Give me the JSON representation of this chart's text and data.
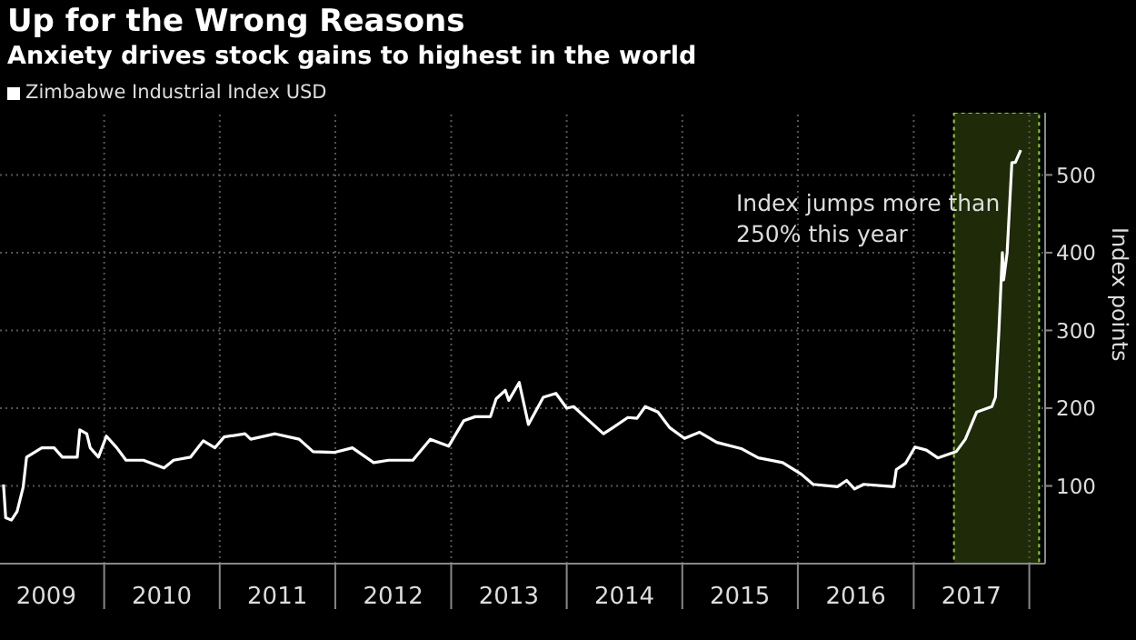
{
  "chart_data": {
    "type": "line",
    "title": "Up for the Wrong Reasons",
    "subtitle": "Anxiety drives stock gains to highest in the world",
    "ylabel": "Index points",
    "annotations": [
      "Index jumps more than 250% this year"
    ],
    "x": [
      "2009-02-17",
      "2009-02-24",
      "2009-03-14",
      "2009-04-01",
      "2009-04-20",
      "2009-05-01",
      "2009-06-18",
      "2009-07-27",
      "2009-08-22",
      "2009-10-08",
      "2009-10-16",
      "2009-11-07",
      "2009-11-18",
      "2009-12-14",
      "2010-01-08",
      "2010-02-10",
      "2010-03-11",
      "2010-05-05",
      "2010-07-09",
      "2010-08-08",
      "2010-10-01",
      "2010-11-10",
      "2010-12-17",
      "2011-01-15",
      "2011-03-22",
      "2011-04-09",
      "2011-06-25",
      "2011-09-09",
      "2011-10-23",
      "2011-12-28",
      "2012-02-24",
      "2012-05-01",
      "2012-06-18",
      "2012-09-02",
      "2012-10-27",
      "2012-12-24",
      "2013-02-10",
      "2013-03-18",
      "2013-05-05",
      "2013-05-23",
      "2013-06-21",
      "2013-07-02",
      "2013-08-04",
      "2013-09-02",
      "2013-10-19",
      "2013-11-28",
      "2014-01-01",
      "2014-01-23",
      "2014-02-21",
      "2014-04-27",
      "2014-05-27",
      "2014-07-13",
      "2014-08-11",
      "2014-09-06",
      "2014-10-16",
      "2014-11-22",
      "2015-01-08",
      "2015-02-24",
      "2015-04-20",
      "2015-07-06",
      "2015-08-29",
      "2015-11-14",
      "2016-01-12",
      "2016-02-18",
      "2016-05-05",
      "2016-06-03",
      "2016-06-28",
      "2016-07-27",
      "2016-10-30",
      "2016-11-07",
      "2016-12-06",
      "2017-01-05",
      "2017-02-10",
      "2017-03-18",
      "2017-05-15",
      "2017-06-13",
      "2017-07-19",
      "2017-09-05",
      "2017-09-16",
      "2017-09-27",
      "2017-10-08",
      "2017-10-12",
      "2017-10-23",
      "2017-11-07",
      "2017-11-18",
      "2017-12-05"
    ],
    "series": [
      {
        "name": "Zimbabwe Industrial Index USD",
        "color": "#ffffff",
        "values": [
          102,
          59,
          56,
          67,
          98,
          137,
          149,
          149,
          137,
          137,
          172,
          167,
          149,
          137,
          164,
          149,
          133,
          133,
          123,
          133,
          137,
          158,
          149,
          163,
          167,
          160,
          167,
          160,
          144,
          143,
          149,
          130,
          133,
          133,
          160,
          151,
          184,
          189,
          189,
          212,
          223,
          210,
          233,
          179,
          214,
          219,
          200,
          202,
          191,
          167,
          175,
          188,
          187,
          202,
          195,
          175,
          161,
          169,
          156,
          148,
          136,
          130,
          115,
          102,
          99,
          107,
          96,
          102,
          99,
          121,
          129,
          150,
          146,
          136,
          144,
          160,
          195,
          202,
          214,
          299,
          400,
          365,
          400,
          516,
          516,
          532
        ]
      }
    ],
    "xlim": [
      "2009-02-06",
      "2018-02-20"
    ],
    "xticks": [
      {
        "value": "2009-07-02",
        "label": "2009"
      },
      {
        "value": "2010-01-01",
        "label": null
      },
      {
        "value": "2010-07-02",
        "label": "2010"
      },
      {
        "value": "2011-01-01",
        "label": null
      },
      {
        "value": "2011-07-02",
        "label": "2011"
      },
      {
        "value": "2012-01-01",
        "label": null
      },
      {
        "value": "2012-07-02",
        "label": "2012"
      },
      {
        "value": "2013-01-01",
        "label": null
      },
      {
        "value": "2013-07-02",
        "label": "2013"
      },
      {
        "value": "2014-01-01",
        "label": null
      },
      {
        "value": "2014-07-02",
        "label": "2014"
      },
      {
        "value": "2015-01-01",
        "label": null
      },
      {
        "value": "2015-07-02",
        "label": "2015"
      },
      {
        "value": "2016-01-01",
        "label": null
      },
      {
        "value": "2016-07-02",
        "label": "2016"
      },
      {
        "value": "2017-01-01",
        "label": null
      },
      {
        "value": "2017-07-02",
        "label": "2017"
      },
      {
        "value": "2018-01-01",
        "label": null
      }
    ],
    "ylim": [
      0,
      580
    ],
    "yticks": [
      100,
      200,
      300,
      400,
      500
    ],
    "bands": [
      {
        "axis": "x",
        "from": "2017-05-08",
        "to": "2018-02-01",
        "color": "#1e2a08"
      }
    ],
    "grid": true,
    "legend": "top left",
    "marker": "none",
    "line_style": "solid"
  }
}
